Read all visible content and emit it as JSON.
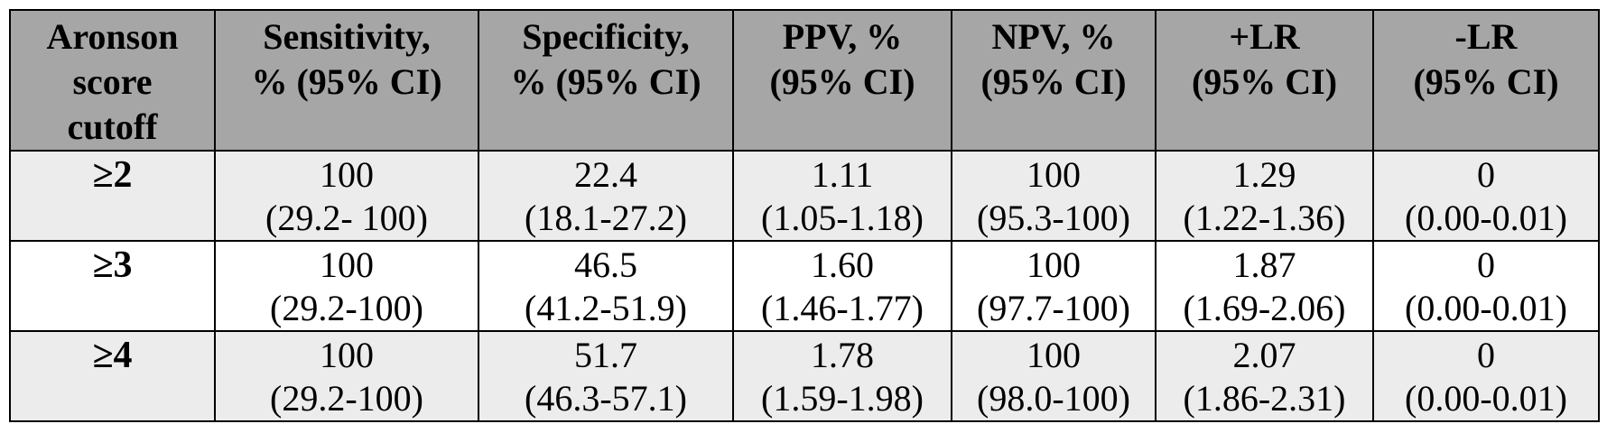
{
  "table": {
    "headers": [
      {
        "lines": [
          "Aronson",
          "score",
          "cutoff"
        ]
      },
      {
        "lines": [
          "Sensitivity,",
          "% (95% CI)"
        ]
      },
      {
        "lines": [
          "Specificity,",
          "% (95% CI)"
        ]
      },
      {
        "lines": [
          "PPV, %",
          "(95% CI)"
        ]
      },
      {
        "lines": [
          "NPV, %",
          "(95% CI)"
        ]
      },
      {
        "lines": [
          "+LR",
          "(95% CI)"
        ]
      },
      {
        "lines": [
          "-LR",
          "(95% CI)"
        ]
      }
    ],
    "rows": [
      {
        "cutoff": "≥2",
        "cells": [
          {
            "value": "100",
            "ci": "(29.2- 100)"
          },
          {
            "value": "22.4",
            "ci": "(18.1-27.2)"
          },
          {
            "value": "1.11",
            "ci": "(1.05-1.18)"
          },
          {
            "value": "100",
            "ci": "(95.3-100)"
          },
          {
            "value": "1.29",
            "ci": "(1.22-1.36)"
          },
          {
            "value": "0",
            "ci": "(0.00-0.01)"
          }
        ]
      },
      {
        "cutoff": "≥3",
        "cells": [
          {
            "value": "100",
            "ci": "(29.2-100)"
          },
          {
            "value": "46.5",
            "ci": "(41.2-51.9)"
          },
          {
            "value": "1.60",
            "ci": "(1.46-1.77)"
          },
          {
            "value": "100",
            "ci": "(97.7-100)"
          },
          {
            "value": "1.87",
            "ci": "(1.69-2.06)"
          },
          {
            "value": "0",
            "ci": "(0.00-0.01)"
          }
        ]
      },
      {
        "cutoff": "≥4",
        "cells": [
          {
            "value": "100",
            "ci": "(29.2-100)"
          },
          {
            "value": "51.7",
            "ci": "(46.3-57.1)"
          },
          {
            "value": "1.78",
            "ci": "(1.59-1.98)"
          },
          {
            "value": "100",
            "ci": "(98.0-100)"
          },
          {
            "value": "2.07",
            "ci": "(1.86-2.31)"
          },
          {
            "value": "0",
            "ci": "(0.00-0.01)"
          }
        ]
      }
    ]
  },
  "colors": {
    "header_background": "#a6a6a6",
    "shaded_row_background": "#ececec",
    "plain_row_background": "#ffffff",
    "border": "#000000"
  }
}
